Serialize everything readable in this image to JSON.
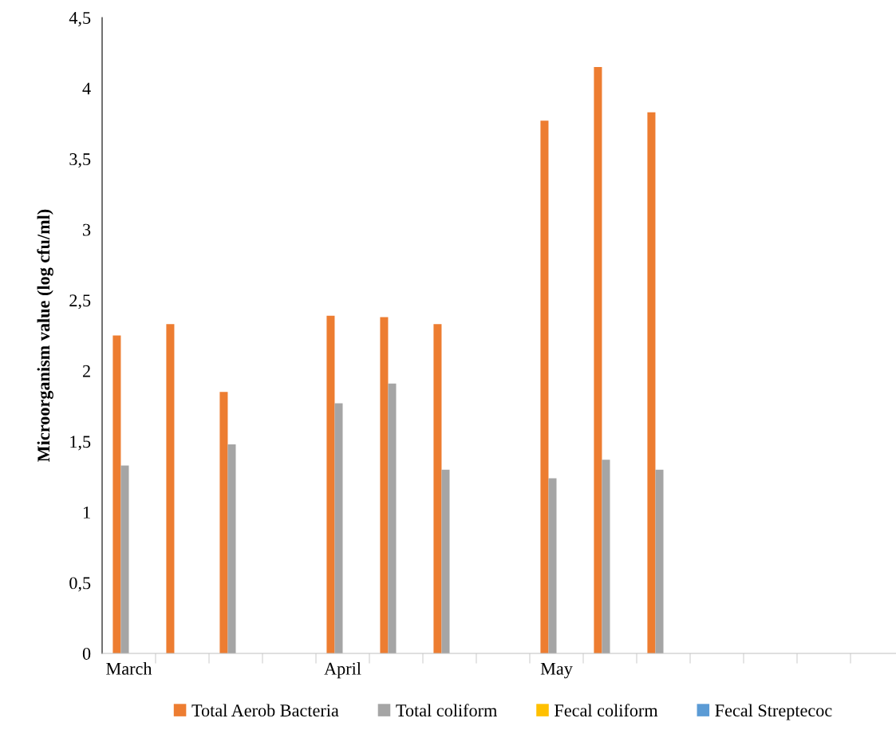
{
  "chart_data": {
    "type": "bar",
    "ylabel": "Microorganism value (log cfu/ml)",
    "categories": [
      "March",
      null,
      null,
      null,
      "April",
      null,
      null,
      null,
      "May",
      null,
      null,
      null,
      null,
      null,
      null
    ],
    "series": [
      {
        "name": "Total Aerob Bacteria",
        "color": "#ed7d31",
        "values": [
          2.25,
          2.33,
          1.85,
          null,
          2.39,
          2.38,
          2.33,
          null,
          3.77,
          4.15,
          3.83,
          null,
          null,
          null,
          null
        ]
      },
      {
        "name": "Total coliform",
        "color": "#a5a5a5",
        "values": [
          1.33,
          null,
          1.48,
          null,
          1.77,
          1.91,
          1.3,
          null,
          1.24,
          1.37,
          1.3,
          null,
          null,
          null,
          null
        ]
      },
      {
        "name": "Fecal coliform",
        "color": "#ffc000",
        "values": [
          null,
          null,
          null,
          null,
          null,
          null,
          null,
          null,
          null,
          null,
          null,
          null,
          null,
          null,
          null
        ]
      },
      {
        "name": "Fecal Streptecoc",
        "color": "#5b9bd5",
        "values": [
          null,
          null,
          null,
          null,
          null,
          null,
          null,
          null,
          null,
          null,
          null,
          null,
          null,
          null,
          null
        ]
      }
    ],
    "ylim": [
      0,
      4.5
    ],
    "yticks": [
      0,
      {
        "value": 0.5,
        "label": "0,5"
      },
      1,
      {
        "value": 1.5,
        "label": "1,5"
      },
      2,
      {
        "value": 2.5,
        "label": "2,5"
      },
      3,
      {
        "value": 3.5,
        "label": "3,5"
      },
      4,
      {
        "value": 4.5,
        "label": "4,5"
      }
    ],
    "grid": false,
    "legend": "bottom"
  }
}
